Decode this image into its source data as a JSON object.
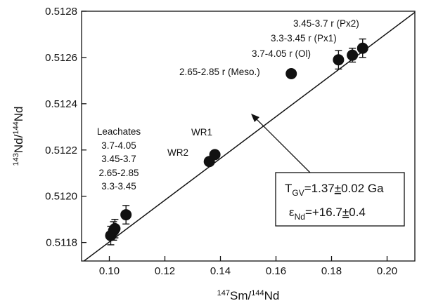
{
  "chart_data": {
    "type": "scatter",
    "title": "",
    "xlabel": {
      "sup": "147",
      "text": "Sm/",
      "sup2": "144",
      "text2": "Nd"
    },
    "ylabel": {
      "sup": "143",
      "text": "Nd/",
      "sup2": "144",
      "text2": "Nd"
    },
    "xlim": [
      0.09,
      0.21
    ],
    "ylim": [
      0.51172,
      0.5128
    ],
    "xticks": [
      0.1,
      0.12,
      0.14,
      0.16,
      0.18,
      0.2
    ],
    "xtick_labels": [
      "0.10",
      "0.12",
      "0.14",
      "0.16",
      "0.18",
      "0.20"
    ],
    "yticks": [
      0.5118,
      0.512,
      0.5122,
      0.5124,
      0.5126,
      0.5128
    ],
    "ytick_labels": [
      "0.5118",
      "0.5120",
      "0.5122",
      "0.5124",
      "0.5126",
      "0.5128"
    ],
    "grid": false,
    "legend": "none",
    "points": [
      {
        "x": 0.1005,
        "y": 0.51183,
        "yerr": 4e-05
      },
      {
        "x": 0.1015,
        "y": 0.51185,
        "yerr": 4e-05
      },
      {
        "x": 0.102,
        "y": 0.51186,
        "yerr": 4e-05
      },
      {
        "x": 0.106,
        "y": 0.51192,
        "yerr": 4e-05
      },
      {
        "x": 0.136,
        "y": 0.51215,
        "yerr": 0
      },
      {
        "x": 0.138,
        "y": 0.51218,
        "yerr": 0
      },
      {
        "x": 0.1655,
        "y": 0.51253,
        "yerr": 0
      },
      {
        "x": 0.1825,
        "y": 0.51259,
        "yerr": 4e-05
      },
      {
        "x": 0.1875,
        "y": 0.51261,
        "yerr": 3e-05
      },
      {
        "x": 0.1912,
        "y": 0.51264,
        "yerr": 4e-05
      }
    ],
    "isochron": {
      "slope": 0.009025,
      "intercept": 0.5109
    },
    "annotations": {
      "px2": "3.45-3.7 r (Px2)",
      "px1": "3.3-3.45 r (Px1)",
      "ol": "3.7-4.05 r (Ol)",
      "meso": "2.65-2.85 r (Meso.)",
      "wr1": "WR1",
      "wr2": "WR2",
      "leachates_title": "Leachates",
      "leachates": [
        "3.7-4.05",
        "3.45-3.7",
        "2.65-2.85",
        "3.3-3.45"
      ]
    },
    "result_box": {
      "t_symbol": "T",
      "t_sub": "GV",
      "t_value": "=1.37",
      "t_pm": "±",
      "t_err": "0.02 Ga",
      "e_symbol": "ε",
      "e_sub": "Nd",
      "e_value": "=+16.7",
      "e_pm": "±",
      "e_err": "0.4"
    },
    "colors": {
      "ink": "#111111",
      "background": "#ffffff"
    }
  }
}
